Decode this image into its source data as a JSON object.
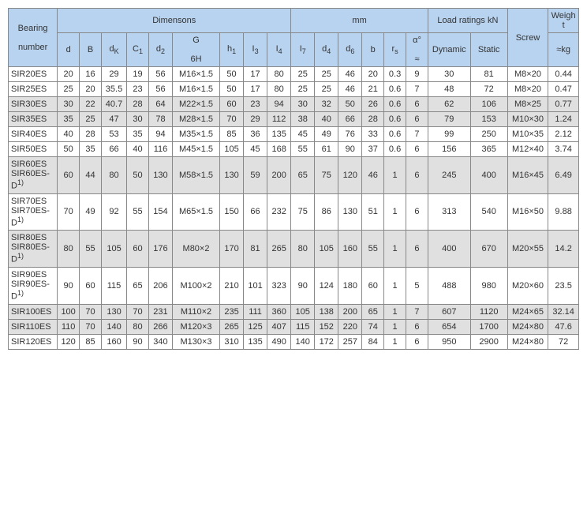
{
  "headers": {
    "group_dimensions": "Dimensons",
    "group_mm": "mm",
    "group_load": "Load ratings  kN",
    "group_weight": "Weight",
    "bearing_line1": "Bearing",
    "bearing_line2": "number",
    "d": "d",
    "B": "B",
    "dK": "d",
    "dK_sub": "K",
    "C1": "C",
    "C1_sub": "1",
    "d2": "d",
    "d2_sub": "2",
    "G": "G",
    "G_line2": "6H",
    "h1": "h",
    "h1_sub": "1",
    "I3": "I",
    "I3_sub": "3",
    "I4": "I",
    "I4_sub": "4",
    "I7": "I",
    "I7_sub": "7",
    "d4": "d",
    "d4_sub": "4",
    "d6": "d",
    "d6_sub": "6",
    "b": "b",
    "rs": "r",
    "rs_sub": "s",
    "alpha": "α°",
    "alpha_line2": "≈",
    "dynamic": "Dynamic",
    "static": "Static",
    "screw": "Screw",
    "weight_unit": "≈kg"
  },
  "rows": [
    {
      "shaded": false,
      "label": "SIR20ES",
      "d": "20",
      "B": "16",
      "dK": "29",
      "C1": "19",
      "d2": "56",
      "G": "M16×1.5",
      "h1": "50",
      "I3": "17",
      "I4": "80",
      "I7": "25",
      "d4": "25",
      "d6": "46",
      "b_": "20",
      "rs": "0.3",
      "alpha": "9",
      "dyn": "30",
      "stat": "81",
      "screw": "M8×20",
      "wt": "0.44"
    },
    {
      "shaded": false,
      "label": "SIR25ES",
      "d": "25",
      "B": "20",
      "dK": "35.5",
      "C1": "23",
      "d2": "56",
      "G": "M16×1.5",
      "h1": "50",
      "I3": "17",
      "I4": "80",
      "I7": "25",
      "d4": "25",
      "d6": "46",
      "b_": "21",
      "rs": "0.6",
      "alpha": "7",
      "dyn": "48",
      "stat": "72",
      "screw": "M8×20",
      "wt": "0.47"
    },
    {
      "shaded": true,
      "label": "SIR30ES",
      "d": "30",
      "B": "22",
      "dK": "40.7",
      "C1": "28",
      "d2": "64",
      "G": "M22×1.5",
      "h1": "60",
      "I3": "23",
      "I4": "94",
      "I7": "30",
      "d4": "32",
      "d6": "50",
      "b_": "26",
      "rs": "0.6",
      "alpha": "6",
      "dyn": "62",
      "stat": "106",
      "screw": "M8×25",
      "wt": "0.77"
    },
    {
      "shaded": true,
      "label": "SIR35ES",
      "d": "35",
      "B": "25",
      "dK": "47",
      "C1": "30",
      "d2": "78",
      "G": "M28×1.5",
      "h1": "70",
      "I3": "29",
      "I4": "112",
      "I7": "38",
      "d4": "40",
      "d6": "66",
      "b_": "28",
      "rs": "0.6",
      "alpha": "6",
      "dyn": "79",
      "stat": "153",
      "screw": "M10×30",
      "wt": "1.24"
    },
    {
      "shaded": false,
      "label": "SIR40ES",
      "d": "40",
      "B": "28",
      "dK": "53",
      "C1": "35",
      "d2": "94",
      "G": "M35×1.5",
      "h1": "85",
      "I3": "36",
      "I4": "135",
      "I7": "45",
      "d4": "49",
      "d6": "76",
      "b_": "33",
      "rs": "0.6",
      "alpha": "7",
      "dyn": "99",
      "stat": "250",
      "screw": "M10×35",
      "wt": "2.12"
    },
    {
      "shaded": false,
      "label": "SIR50ES",
      "d": "50",
      "B": "35",
      "dK": "66",
      "C1": "40",
      "d2": "116",
      "G": "M45×1.5",
      "h1": "105",
      "I3": "45",
      "I4": "168",
      "I7": "55",
      "d4": "61",
      "d6": "90",
      "b_": "37",
      "rs": "0.6",
      "alpha": "6",
      "dyn": "156",
      "stat": "365",
      "screw": "M12×40",
      "wt": "3.74"
    },
    {
      "shaded": true,
      "label": "SIR60ES<br>SIR60ES-D<sup>1)</sup>",
      "d": "60",
      "B": "44",
      "dK": "80",
      "C1": "50",
      "d2": "130",
      "G": "M58×1.5",
      "h1": "130",
      "I3": "59",
      "I4": "200",
      "I7": "65",
      "d4": "75",
      "d6": "120",
      "b_": "46",
      "rs": "1",
      "alpha": "6",
      "dyn": "245",
      "stat": "400",
      "screw": "M16×45",
      "wt": "6.49"
    },
    {
      "shaded": false,
      "label": "SIR70ES<br>SIR70ES-D<sup>1)</sup>",
      "d": "70",
      "B": "49",
      "dK": "92",
      "C1": "55",
      "d2": "154",
      "G": "M65×1.5",
      "h1": "150",
      "I3": "66",
      "I4": "232",
      "I7": "75",
      "d4": "86",
      "d6": "130",
      "b_": "51",
      "rs": "1",
      "alpha": "6",
      "dyn": "313",
      "stat": "540",
      "screw": "M16×50",
      "wt": "9.88"
    },
    {
      "shaded": true,
      "label": "SIR80ES<br>SIR80ES-D<sup>1)</sup>",
      "d": "80",
      "B": "55",
      "dK": "105",
      "C1": "60",
      "d2": "176",
      "G": "M80×2",
      "h1": "170",
      "I3": "81",
      "I4": "265",
      "I7": "80",
      "d4": "105",
      "d6": "160",
      "b_": "55",
      "rs": "1",
      "alpha": "6",
      "dyn": "400",
      "stat": "670",
      "screw": "M20×55",
      "wt": "14.2"
    },
    {
      "shaded": false,
      "label": "SIR90ES<br>SIR90ES-D<sup>1)</sup>",
      "d": "90",
      "B": "60",
      "dK": "115",
      "C1": "65",
      "d2": "206",
      "G": "M100×2",
      "h1": "210",
      "I3": "101",
      "I4": "323",
      "I7": "90",
      "d4": "124",
      "d6": "180",
      "b_": "60",
      "rs": "1",
      "alpha": "5",
      "dyn": "488",
      "stat": "980",
      "screw": "M20×60",
      "wt": "23.5"
    },
    {
      "shaded": true,
      "label": "SIR100ES",
      "d": "100",
      "B": "70",
      "dK": "130",
      "C1": "70",
      "d2": "231",
      "G": "M110×2",
      "h1": "235",
      "I3": "111",
      "I4": "360",
      "I7": "105",
      "d4": "138",
      "d6": "200",
      "b_": "65",
      "rs": "1",
      "alpha": "7",
      "dyn": "607",
      "stat": "1120",
      "screw": "M24×65",
      "wt": "32.14"
    },
    {
      "shaded": true,
      "label": "SIR110ES",
      "d": "110",
      "B": "70",
      "dK": "140",
      "C1": "80",
      "d2": "266",
      "G": "M120×3",
      "h1": "265",
      "I3": "125",
      "I4": "407",
      "I7": "115",
      "d4": "152",
      "d6": "220",
      "b_": "74",
      "rs": "1",
      "alpha": "6",
      "dyn": "654",
      "stat": "1700",
      "screw": "M24×80",
      "wt": "47.6"
    },
    {
      "shaded": false,
      "label": "SIR120ES",
      "d": "120",
      "B": "85",
      "dK": "160",
      "C1": "90",
      "d2": "340",
      "G": "M130×3",
      "h1": "310",
      "I3": "135",
      "I4": "490",
      "I7": "140",
      "d4": "172",
      "d6": "257",
      "b_": "84",
      "rs": "1",
      "alpha": "6",
      "dyn": "950",
      "stat": "2900",
      "screw": "M24×80",
      "wt": "72"
    }
  ],
  "col_widths": {
    "bearing": 58,
    "d": 26,
    "B": 26,
    "dK": 30,
    "C1": 26,
    "d2": 28,
    "G": 56,
    "h1": 28,
    "I3": 28,
    "I4": 28,
    "I7": 28,
    "d4": 28,
    "d6": 28,
    "b": 26,
    "rs": 26,
    "alpha": 26,
    "dyn": 50,
    "stat": 44,
    "screw": 48,
    "wt": 36
  }
}
